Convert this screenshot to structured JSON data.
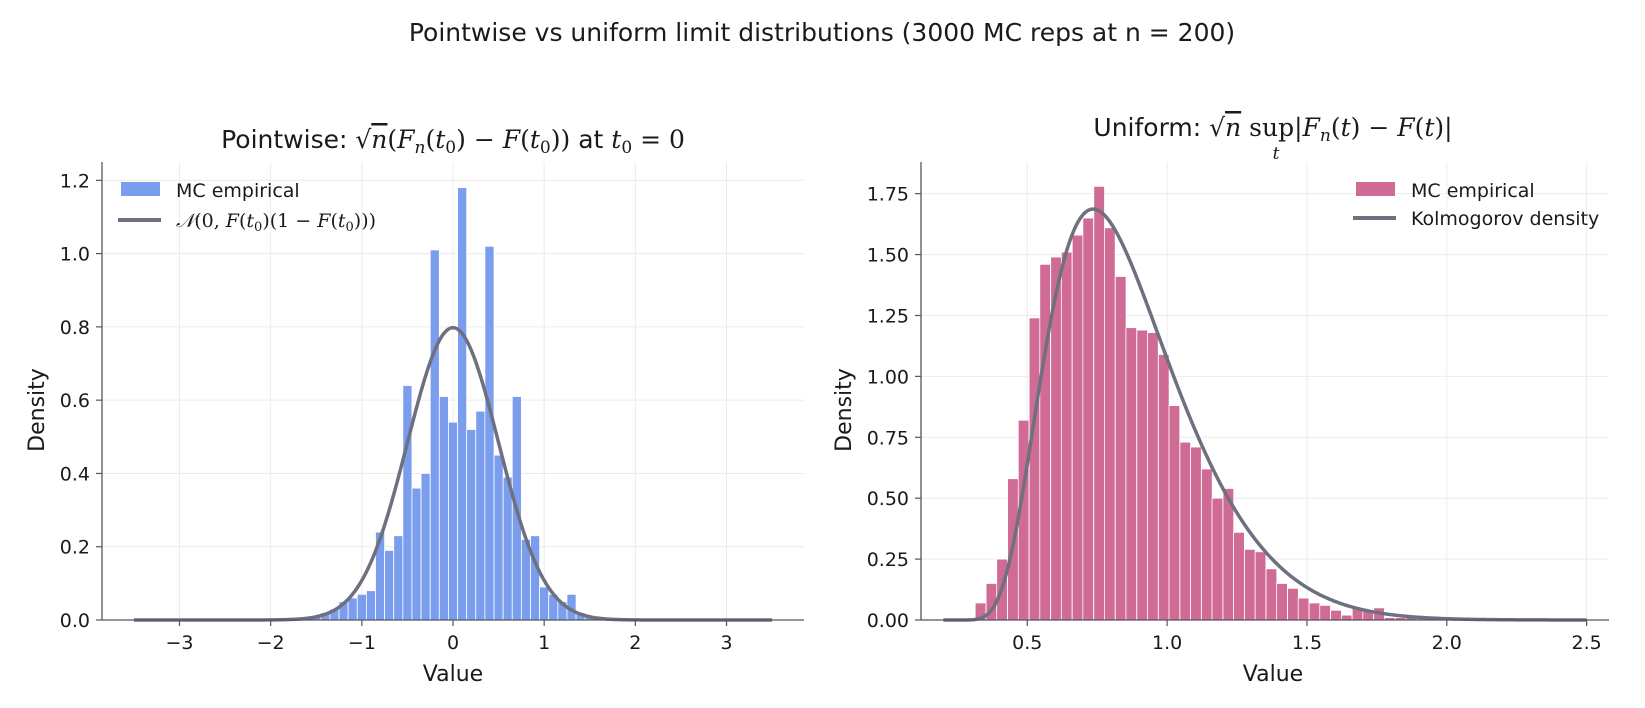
{
  "suptitle": "Pointwise vs uniform limit distributions (3000 MC reps at n = 200)",
  "colors": {
    "blue_bar": "#7b9ded",
    "pink_bar": "#cf6b94",
    "curve": "#6e7080",
    "grid": "#ececec",
    "axis": "#555560"
  },
  "chart_data": [
    {
      "type": "bar",
      "title": "Pointwise: √n(F_n(t₀) − F(t₀)) at t₀ = 0",
      "xlabel": "Value",
      "ylabel": "Density",
      "xlim": [
        -3.85,
        3.85
      ],
      "ylim": [
        0,
        1.25
      ],
      "xticks": [
        -3,
        -2,
        -1,
        0,
        1,
        2,
        3
      ],
      "yticks": [
        0.0,
        0.2,
        0.4,
        0.6,
        0.8,
        1.0,
        1.2
      ],
      "xtick_labels": [
        "−3",
        "−2",
        "−1",
        "0",
        "1",
        "2",
        "3"
      ],
      "ytick_labels": [
        "0.0",
        "0.2",
        "0.4",
        "0.6",
        "0.8",
        "1.0",
        "1.2"
      ],
      "grid": true,
      "legend_position": "upper-left",
      "bin_width": 0.1,
      "bins": [
        {
          "x": -1.6,
          "y": 0.005
        },
        {
          "x": -1.5,
          "y": 0.01
        },
        {
          "x": -1.4,
          "y": 0.02
        },
        {
          "x": -1.3,
          "y": 0.03
        },
        {
          "x": -1.2,
          "y": 0.05
        },
        {
          "x": -1.1,
          "y": 0.06
        },
        {
          "x": -1.0,
          "y": 0.07
        },
        {
          "x": -0.9,
          "y": 0.08
        },
        {
          "x": -0.8,
          "y": 0.24
        },
        {
          "x": -0.7,
          "y": 0.19
        },
        {
          "x": -0.6,
          "y": 0.23
        },
        {
          "x": -0.5,
          "y": 0.64
        },
        {
          "x": -0.4,
          "y": 0.36
        },
        {
          "x": -0.3,
          "y": 0.4
        },
        {
          "x": -0.2,
          "y": 1.01
        },
        {
          "x": -0.1,
          "y": 0.61
        },
        {
          "x": 0.0,
          "y": 0.54
        },
        {
          "x": 0.1,
          "y": 1.18
        },
        {
          "x": 0.2,
          "y": 0.52
        },
        {
          "x": 0.3,
          "y": 0.57
        },
        {
          "x": 0.4,
          "y": 1.02
        },
        {
          "x": 0.5,
          "y": 0.45
        },
        {
          "x": 0.6,
          "y": 0.39
        },
        {
          "x": 0.7,
          "y": 0.61
        },
        {
          "x": 0.8,
          "y": 0.22
        },
        {
          "x": 0.9,
          "y": 0.23
        },
        {
          "x": 1.0,
          "y": 0.09
        },
        {
          "x": 1.1,
          "y": 0.07
        },
        {
          "x": 1.2,
          "y": 0.05
        },
        {
          "x": 1.3,
          "y": 0.07
        },
        {
          "x": 1.4,
          "y": 0.02
        },
        {
          "x": 1.5,
          "y": 0.01
        }
      ],
      "series": [
        {
          "name": "MC empirical",
          "kind": "histogram"
        },
        {
          "name": "𝒩(0, F(t₀)(1 − F(t₀)))",
          "kind": "line",
          "function": "normal",
          "mean": 0,
          "sd": 0.5,
          "domain": [
            -3.5,
            3.5
          ]
        }
      ]
    },
    {
      "type": "bar",
      "title": "Uniform: √n sup_t |F_n(t) − F(t)|",
      "xlabel": "Value",
      "ylabel": "Density",
      "xlim": [
        0.12,
        2.58
      ],
      "ylim": [
        0,
        1.88
      ],
      "xticks": [
        0.5,
        1.0,
        1.5,
        2.0,
        2.5
      ],
      "yticks": [
        0.0,
        0.25,
        0.5,
        0.75,
        1.0,
        1.25,
        1.5,
        1.75
      ],
      "xtick_labels": [
        "0.5",
        "1.0",
        "1.5",
        "2.0",
        "2.5"
      ],
      "ytick_labels": [
        "0.00",
        "0.25",
        "0.50",
        "0.75",
        "1.00",
        "1.25",
        "1.50",
        "1.75"
      ],
      "grid": true,
      "legend_position": "upper-right",
      "bin_width": 0.0385,
      "bins": [
        {
          "x": 0.333,
          "y": 0.07
        },
        {
          "x": 0.372,
          "y": 0.15
        },
        {
          "x": 0.41,
          "y": 0.25
        },
        {
          "x": 0.449,
          "y": 0.58
        },
        {
          "x": 0.487,
          "y": 0.82
        },
        {
          "x": 0.526,
          "y": 1.24
        },
        {
          "x": 0.564,
          "y": 1.46
        },
        {
          "x": 0.603,
          "y": 1.49
        },
        {
          "x": 0.641,
          "y": 1.51
        },
        {
          "x": 0.68,
          "y": 1.58
        },
        {
          "x": 0.718,
          "y": 1.65
        },
        {
          "x": 0.757,
          "y": 1.78
        },
        {
          "x": 0.795,
          "y": 1.61
        },
        {
          "x": 0.834,
          "y": 1.41
        },
        {
          "x": 0.872,
          "y": 1.2
        },
        {
          "x": 0.911,
          "y": 1.19
        },
        {
          "x": 0.949,
          "y": 1.18
        },
        {
          "x": 0.988,
          "y": 1.09
        },
        {
          "x": 1.026,
          "y": 0.88
        },
        {
          "x": 1.065,
          "y": 0.73
        },
        {
          "x": 1.103,
          "y": 0.71
        },
        {
          "x": 1.142,
          "y": 0.62
        },
        {
          "x": 1.18,
          "y": 0.5
        },
        {
          "x": 1.219,
          "y": 0.54
        },
        {
          "x": 1.257,
          "y": 0.36
        },
        {
          "x": 1.296,
          "y": 0.29
        },
        {
          "x": 1.334,
          "y": 0.28
        },
        {
          "x": 1.373,
          "y": 0.21
        },
        {
          "x": 1.411,
          "y": 0.15
        },
        {
          "x": 1.45,
          "y": 0.13
        },
        {
          "x": 1.488,
          "y": 0.09
        },
        {
          "x": 1.527,
          "y": 0.07
        },
        {
          "x": 1.565,
          "y": 0.06
        },
        {
          "x": 1.604,
          "y": 0.04
        },
        {
          "x": 1.642,
          "y": 0.02
        },
        {
          "x": 1.681,
          "y": 0.05
        },
        {
          "x": 1.719,
          "y": 0.04
        },
        {
          "x": 1.758,
          "y": 0.05
        },
        {
          "x": 1.796,
          "y": 0.01
        },
        {
          "x": 1.835,
          "y": 0.01
        },
        {
          "x": 1.873,
          "y": 0.01
        },
        {
          "x": 1.912,
          "y": 0.005
        }
      ],
      "series": [
        {
          "name": "MC empirical",
          "kind": "histogram"
        },
        {
          "name": "Kolmogorov density",
          "kind": "line",
          "function": "kolmogorov",
          "domain": [
            0.2,
            2.5
          ]
        }
      ]
    }
  ]
}
